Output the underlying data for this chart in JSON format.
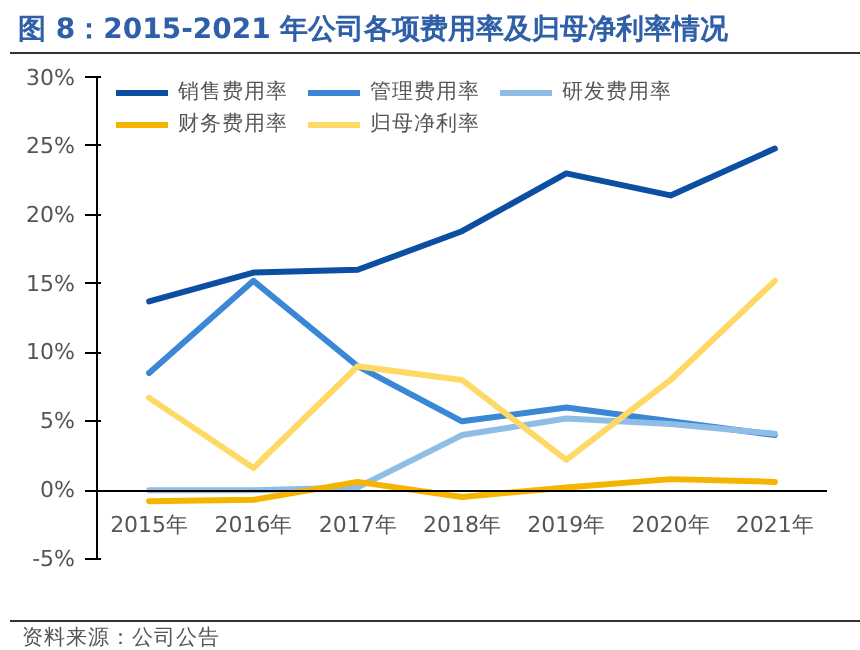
{
  "chart_data": {
    "type": "line",
    "title": "图 8：2015-2021 年公司各项费用率及归母净利率情况",
    "categories": [
      "2015年",
      "2016年",
      "2017年",
      "2018年",
      "2019年",
      "2020年",
      "2021年"
    ],
    "series": [
      {
        "name": "销售费用率",
        "color": "#0b4ea2",
        "values": [
          13.7,
          15.8,
          16.0,
          18.8,
          23.0,
          21.4,
          24.8
        ]
      },
      {
        "name": "管理费用率",
        "color": "#3a87d6",
        "values": [
          8.5,
          15.2,
          9.0,
          5.0,
          6.0,
          5.0,
          4.0
        ]
      },
      {
        "name": "研发费用率",
        "color": "#90bde6",
        "values": [
          0.0,
          0.0,
          0.2,
          4.0,
          5.2,
          4.8,
          4.1
        ]
      },
      {
        "name": "财务费用率",
        "color": "#f5b400",
        "values": [
          -0.8,
          -0.7,
          0.6,
          -0.5,
          0.2,
          0.8,
          0.6
        ]
      },
      {
        "name": "归母净利率",
        "color": "#ffd966",
        "values": [
          6.7,
          1.6,
          9.0,
          8.0,
          2.2,
          8.0,
          15.2
        ]
      }
    ],
    "ylim": [
      -5,
      30
    ],
    "yticks": [
      {
        "value": -5,
        "label": "-5%"
      },
      {
        "value": 0,
        "label": "0%"
      },
      {
        "value": 5,
        "label": "5%"
      },
      {
        "value": 10,
        "label": "10%"
      },
      {
        "value": 15,
        "label": "15%"
      },
      {
        "value": 20,
        "label": "20%"
      },
      {
        "value": 25,
        "label": "25%"
      },
      {
        "value": 30,
        "label": "30%"
      }
    ],
    "grid": false,
    "legend": "top",
    "line_style": "solid",
    "annotations": [
      "资料来源：公司公告"
    ]
  }
}
